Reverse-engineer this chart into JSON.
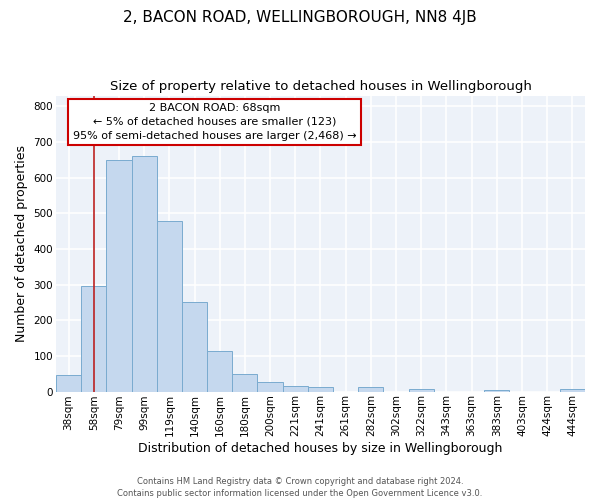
{
  "title": "2, BACON ROAD, WELLINGBOROUGH, NN8 4JB",
  "subtitle": "Size of property relative to detached houses in Wellingborough",
  "xlabel": "Distribution of detached houses by size in Wellingborough",
  "ylabel": "Number of detached properties",
  "bar_labels": [
    "38sqm",
    "58sqm",
    "79sqm",
    "99sqm",
    "119sqm",
    "140sqm",
    "160sqm",
    "180sqm",
    "200sqm",
    "221sqm",
    "241sqm",
    "261sqm",
    "282sqm",
    "302sqm",
    "322sqm",
    "343sqm",
    "363sqm",
    "383sqm",
    "403sqm",
    "424sqm",
    "444sqm"
  ],
  "bar_heights": [
    47,
    295,
    650,
    660,
    478,
    252,
    113,
    48,
    28,
    15,
    13,
    0,
    13,
    0,
    8,
    0,
    0,
    5,
    0,
    0,
    8
  ],
  "bar_color": "#c5d8ee",
  "bar_edge_color": "#7aabcf",
  "red_line_x": 1.5,
  "annotation_title": "2 BACON ROAD: 68sqm",
  "annotation_line1": "← 5% of detached houses are smaller (123)",
  "annotation_line2": "95% of semi-detached houses are larger (2,468) →",
  "annotation_box_color": "#ffffff",
  "annotation_box_edge": "#cc0000",
  "ylim": [
    0,
    830
  ],
  "yticks": [
    0,
    100,
    200,
    300,
    400,
    500,
    600,
    700,
    800
  ],
  "footer1": "Contains HM Land Registry data © Crown copyright and database right 2024.",
  "footer2": "Contains public sector information licensed under the Open Government Licence v3.0.",
  "bg_color": "#ffffff",
  "plot_bg_color": "#edf2f9",
  "grid_color": "#ffffff",
  "title_fontsize": 11,
  "subtitle_fontsize": 9.5,
  "axis_label_fontsize": 9,
  "tick_fontsize": 7.5,
  "annotation_fontsize": 8,
  "footer_fontsize": 6
}
